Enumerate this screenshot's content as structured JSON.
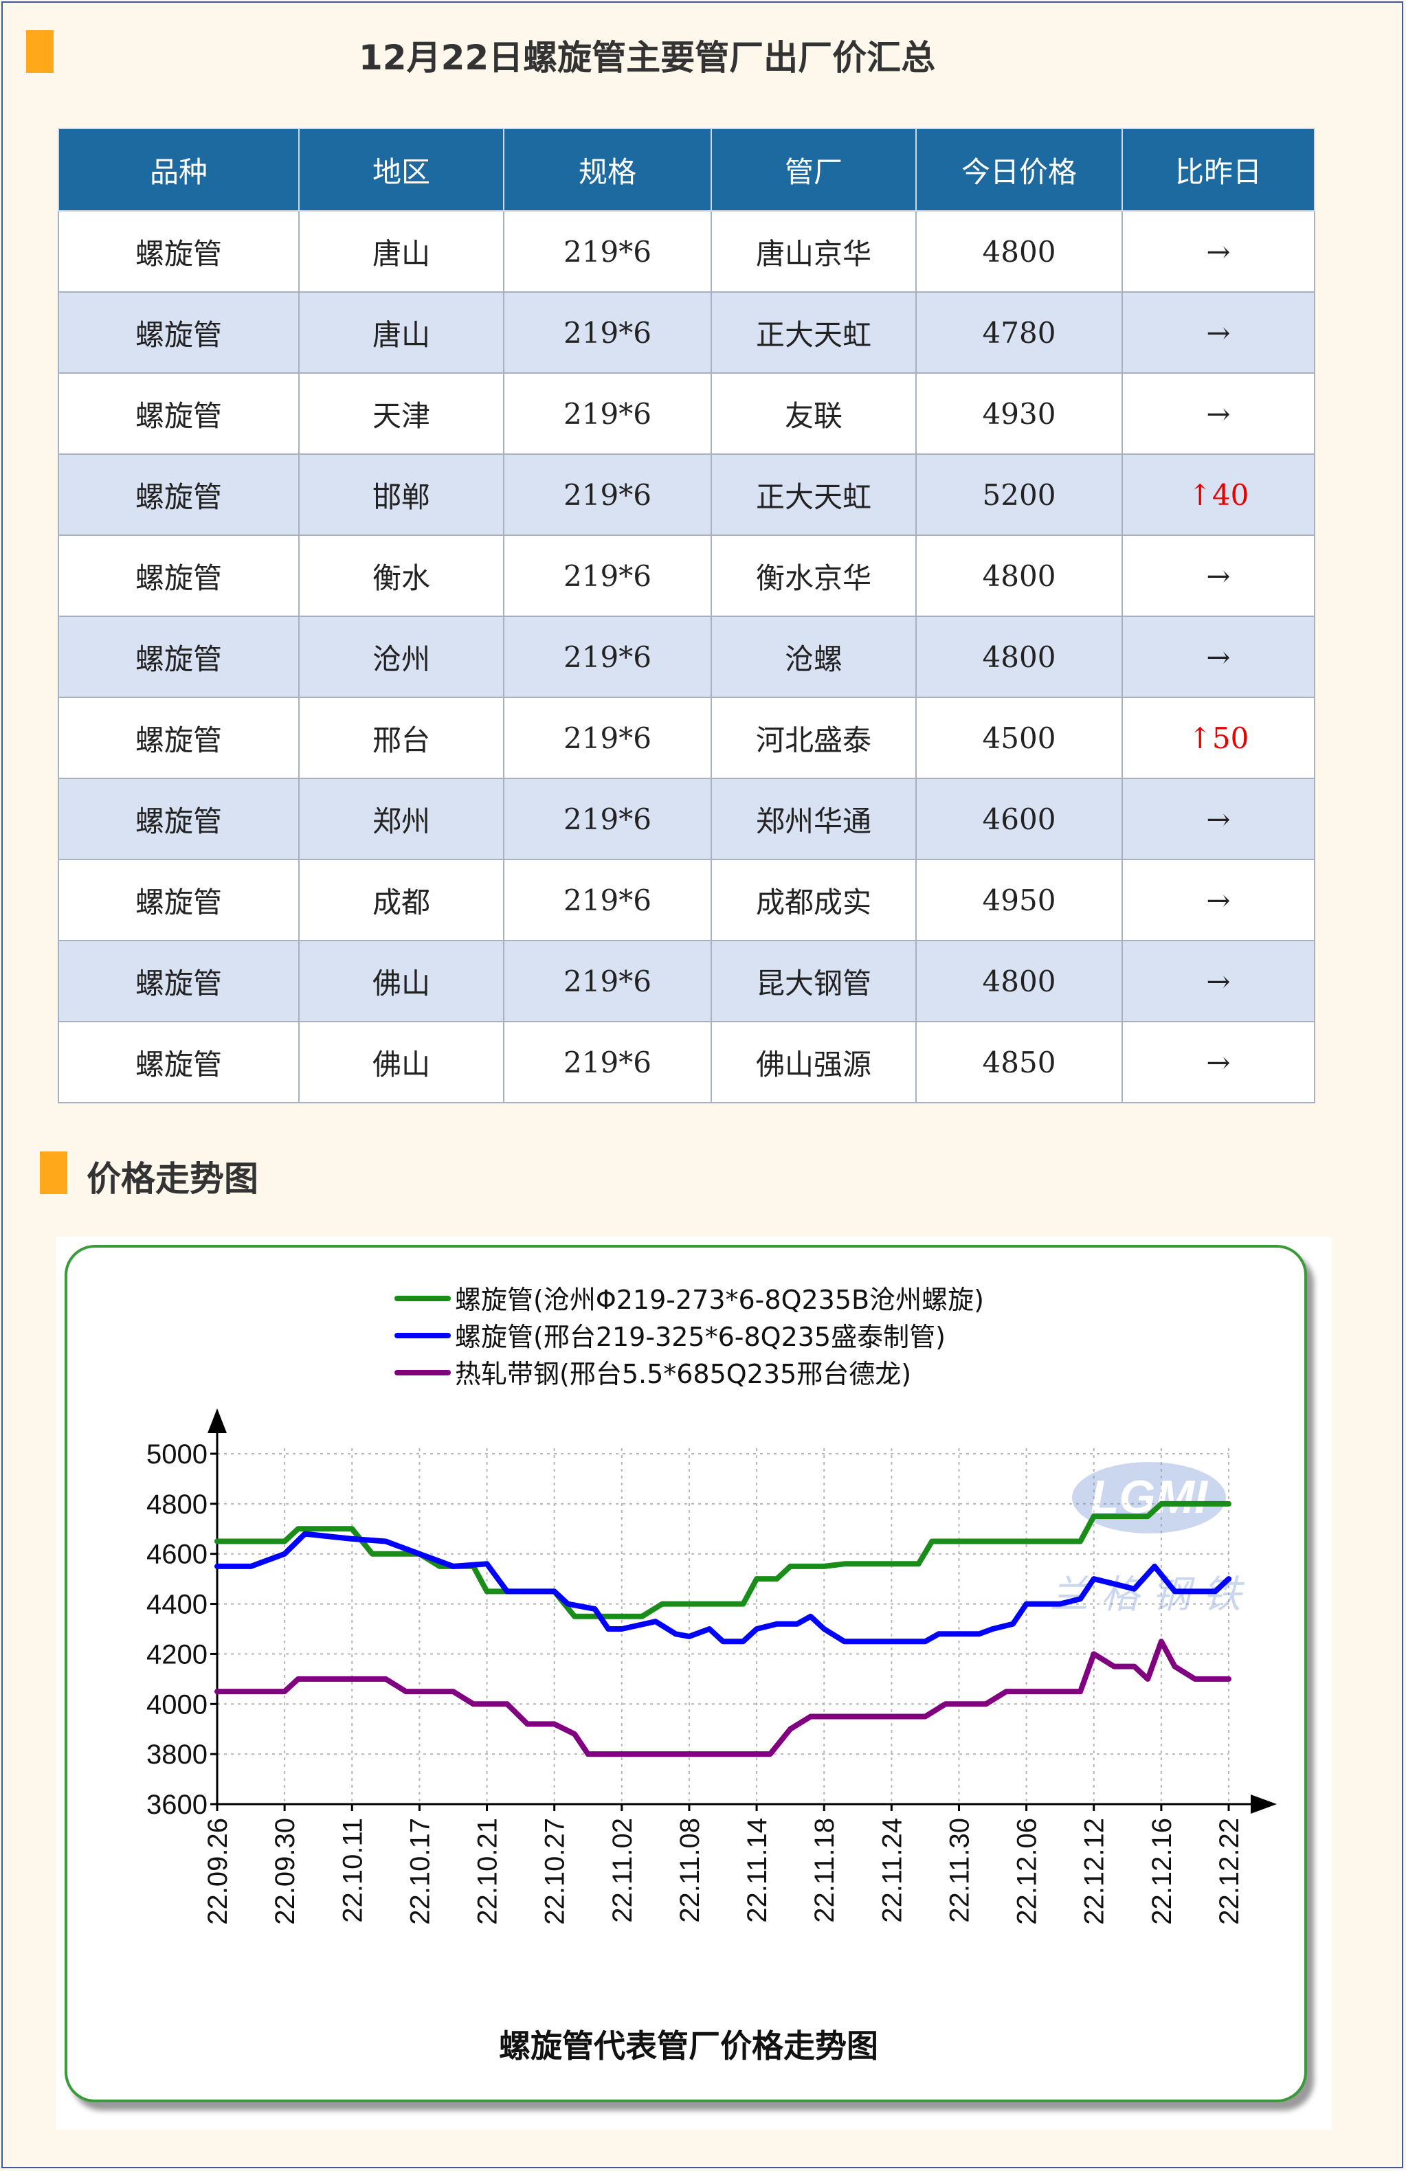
{
  "header": {
    "title": "12月22日螺旋管主要管厂出厂价汇总"
  },
  "table": {
    "columns": [
      "品种",
      "地区",
      "规格",
      "管厂",
      "今日价格",
      "比昨日"
    ],
    "rows": [
      [
        "螺旋管",
        "唐山",
        "219*6",
        "唐山京华",
        "4800",
        "→"
      ],
      [
        "螺旋管",
        "唐山",
        "219*6",
        "正大天虹",
        "4780",
        "→"
      ],
      [
        "螺旋管",
        "天津",
        "219*6",
        "友联",
        "4930",
        "→"
      ],
      [
        "螺旋管",
        "邯郸",
        "219*6",
        "正大天虹",
        "5200",
        "↑40"
      ],
      [
        "螺旋管",
        "衡水",
        "219*6",
        "衡水京华",
        "4800",
        "→"
      ],
      [
        "螺旋管",
        "沧州",
        "219*6",
        "沧螺",
        "4800",
        "→"
      ],
      [
        "螺旋管",
        "邢台",
        "219*6",
        "河北盛泰",
        "4500",
        "↑50"
      ],
      [
        "螺旋管",
        "郑州",
        "219*6",
        "郑州华通",
        "4600",
        "→"
      ],
      [
        "螺旋管",
        "成都",
        "219*6",
        "成都成实",
        "4950",
        "→"
      ],
      [
        "螺旋管",
        "佛山",
        "219*6",
        "昆大钢管",
        "4800",
        "→"
      ],
      [
        "螺旋管",
        "佛山",
        "219*6",
        "佛山强源",
        "4850",
        "→"
      ]
    ]
  },
  "trend_section": {
    "title": "价格走势图"
  },
  "watermark": {
    "logo_text": "LGMI",
    "sub_text": "兰格钢铁"
  },
  "colors": {
    "green": "#1a8c1a",
    "blue": "#0000ff",
    "purple": "#800080",
    "header_bg": "#1d6aa1",
    "marker": "#ffa81a",
    "up": "#e60000"
  },
  "chart_data": {
    "type": "line",
    "title": "螺旋管代表管厂价格走势图",
    "xlabel": "",
    "ylabel": "",
    "ylim": [
      3600,
      5000
    ],
    "yticks": [
      3600,
      3800,
      4000,
      4200,
      4400,
      4600,
      4800,
      5000
    ],
    "x_ticks": [
      "22.09.26",
      "22.09.30",
      "22.10.11",
      "22.10.17",
      "22.10.21",
      "22.10.27",
      "22.11.02",
      "22.11.08",
      "22.11.14",
      "22.11.18",
      "22.11.24",
      "22.11.30",
      "22.12.06",
      "22.12.12",
      "22.12.16",
      "22.12.22"
    ],
    "grid": true,
    "legend_position": "top-center",
    "series": [
      {
        "name": "螺旋管(沧州Φ219-273*6-8Q235B沧州螺旋)",
        "color": "#1a8c1a",
        "points": [
          [
            0,
            4650
          ],
          [
            1,
            4650
          ],
          [
            1.2,
            4700
          ],
          [
            2,
            4700
          ],
          [
            2.3,
            4600
          ],
          [
            3,
            4600
          ],
          [
            3.3,
            4550
          ],
          [
            3.8,
            4550
          ],
          [
            4,
            4450
          ],
          [
            5,
            4450
          ],
          [
            5.3,
            4350
          ],
          [
            6,
            4350
          ],
          [
            6.3,
            4350
          ],
          [
            6.6,
            4400
          ],
          [
            7,
            4400
          ],
          [
            7.4,
            4400
          ],
          [
            7.8,
            4400
          ],
          [
            8,
            4500
          ],
          [
            8.3,
            4500
          ],
          [
            8.5,
            4550
          ],
          [
            9,
            4550
          ],
          [
            9.3,
            4560
          ],
          [
            10,
            4560
          ],
          [
            10.4,
            4560
          ],
          [
            10.6,
            4650
          ],
          [
            11,
            4650
          ],
          [
            12,
            4650
          ],
          [
            12.8,
            4650
          ],
          [
            13,
            4750
          ],
          [
            13.5,
            4750
          ],
          [
            13.8,
            4750
          ],
          [
            14,
            4800
          ],
          [
            15,
            4800
          ]
        ]
      },
      {
        "name": "螺旋管(邢台219-325*6-8Q235盛泰制管)",
        "color": "#0000ff",
        "points": [
          [
            0,
            4550
          ],
          [
            0.5,
            4550
          ],
          [
            1,
            4600
          ],
          [
            1.3,
            4680
          ],
          [
            2,
            4660
          ],
          [
            2.5,
            4650
          ],
          [
            3,
            4600
          ],
          [
            3.5,
            4550
          ],
          [
            4,
            4560
          ],
          [
            4.3,
            4450
          ],
          [
            5,
            4450
          ],
          [
            5.2,
            4400
          ],
          [
            5.6,
            4380
          ],
          [
            5.8,
            4300
          ],
          [
            6,
            4300
          ],
          [
            6.5,
            4330
          ],
          [
            6.8,
            4280
          ],
          [
            7,
            4270
          ],
          [
            7.3,
            4300
          ],
          [
            7.5,
            4250
          ],
          [
            7.8,
            4250
          ],
          [
            8,
            4300
          ],
          [
            8.3,
            4320
          ],
          [
            8.6,
            4320
          ],
          [
            8.8,
            4350
          ],
          [
            9,
            4300
          ],
          [
            9.3,
            4250
          ],
          [
            10,
            4250
          ],
          [
            10.5,
            4250
          ],
          [
            10.7,
            4280
          ],
          [
            11,
            4280
          ],
          [
            11.3,
            4280
          ],
          [
            11.5,
            4300
          ],
          [
            11.8,
            4320
          ],
          [
            12,
            4400
          ],
          [
            12.5,
            4400
          ],
          [
            12.8,
            4420
          ],
          [
            13,
            4500
          ],
          [
            13.3,
            4480
          ],
          [
            13.6,
            4460
          ],
          [
            13.9,
            4550
          ],
          [
            14.2,
            4450
          ],
          [
            14.5,
            4450
          ],
          [
            14.8,
            4450
          ],
          [
            15,
            4500
          ]
        ]
      },
      {
        "name": "热轧带钢(邢台5.5*685Q235邢台德龙)",
        "color": "#800080",
        "points": [
          [
            0,
            4050
          ],
          [
            0.5,
            4050
          ],
          [
            1,
            4050
          ],
          [
            1.2,
            4100
          ],
          [
            2,
            4100
          ],
          [
            2.5,
            4100
          ],
          [
            2.8,
            4050
          ],
          [
            3,
            4050
          ],
          [
            3.5,
            4050
          ],
          [
            3.8,
            4000
          ],
          [
            4,
            4000
          ],
          [
            4.3,
            4000
          ],
          [
            4.6,
            3920
          ],
          [
            5,
            3920
          ],
          [
            5.3,
            3880
          ],
          [
            5.5,
            3800
          ],
          [
            6,
            3800
          ],
          [
            7,
            3800
          ],
          [
            7.5,
            3800
          ],
          [
            8,
            3800
          ],
          [
            8.2,
            3800
          ],
          [
            8.5,
            3900
          ],
          [
            8.8,
            3950
          ],
          [
            9,
            3950
          ],
          [
            9.5,
            3950
          ],
          [
            10,
            3950
          ],
          [
            10.5,
            3950
          ],
          [
            10.8,
            4000
          ],
          [
            11,
            4000
          ],
          [
            11.4,
            4000
          ],
          [
            11.7,
            4050
          ],
          [
            12,
            4050
          ],
          [
            12.6,
            4050
          ],
          [
            12.8,
            4050
          ],
          [
            13,
            4200
          ],
          [
            13.3,
            4150
          ],
          [
            13.6,
            4150
          ],
          [
            13.8,
            4100
          ],
          [
            14,
            4250
          ],
          [
            14.2,
            4150
          ],
          [
            14.5,
            4100
          ],
          [
            15,
            4100
          ]
        ]
      }
    ]
  }
}
